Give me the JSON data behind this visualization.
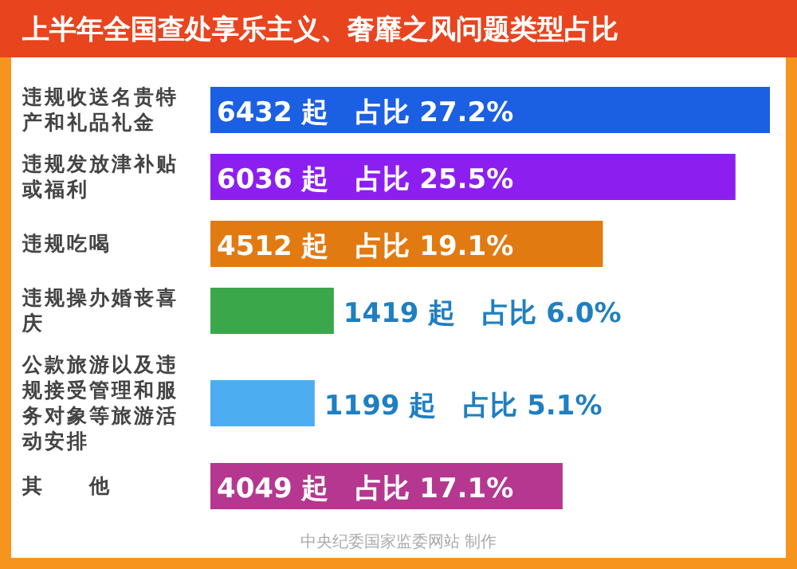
{
  "chart_data": {
    "type": "bar",
    "orientation": "horizontal",
    "title": "上半年全国查处享乐主义、奢靡之风问题类型占比",
    "categories": [
      "违规收送名贵特产和礼品礼金",
      "违规发放津补贴或福利",
      "违规吃喝",
      "违规操办婚丧喜庆",
      "公款旅游以及违规接受管理和服务对象等旅游活动安排",
      "其　　他"
    ],
    "values": [
      6432,
      6036,
      4512,
      1419,
      1199,
      4049
    ],
    "colors": [
      "#1b5fe3",
      "#8c1ff0",
      "#e27a12",
      "#3aa84a",
      "#4caef0",
      "#b5378f"
    ],
    "value_labels": [
      "6432 起　占比 27.2%",
      "6036 起　占比 25.5%",
      "4512 起　占比 19.1%",
      "1419 起　占比 6.0%",
      "1199 起　占比 5.1%",
      "4049 起　占比 17.1%"
    ],
    "annotations": [
      "中央纪委国家监委网站 制作"
    ]
  }
}
